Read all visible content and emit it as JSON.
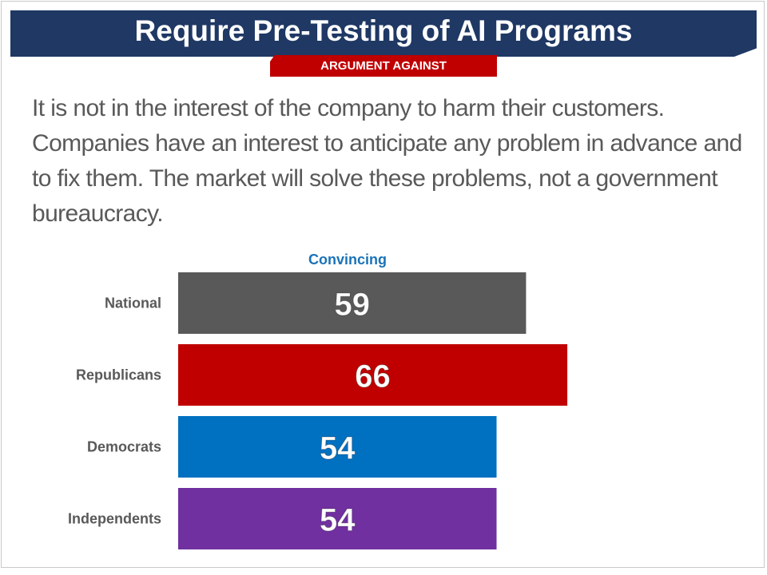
{
  "slide": {
    "title": "Require Pre-Testing of AI Programs",
    "badge": "ARGUMENT AGAINST",
    "body": "It is not in the interest of the company to harm their customers. Companies have an interest to anticipate any problem in advance and to fix them. The market will solve these problems, not a government bureaucracy."
  },
  "colors": {
    "title_band": "#1f3864",
    "badge": "#c00000",
    "header_text": "#1a73b8"
  },
  "chart_data": {
    "type": "bar",
    "orientation": "horizontal",
    "title": "Convincing",
    "categories": [
      "National",
      "Republicans",
      "Democrats",
      "Independents"
    ],
    "values": [
      59,
      66,
      54,
      54
    ],
    "colors": [
      "#595959",
      "#c00000",
      "#0070c0",
      "#7030a0"
    ],
    "xlim": [
      0,
      100
    ],
    "grid": false,
    "legend": "none"
  }
}
